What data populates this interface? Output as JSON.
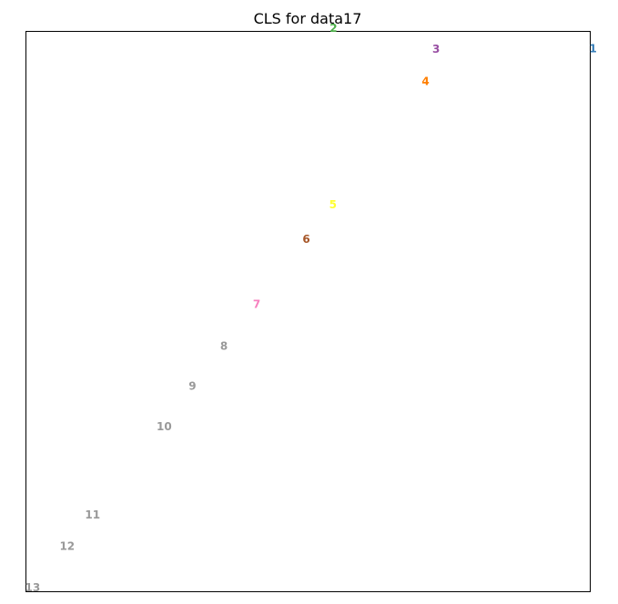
{
  "chart_data": {
    "type": "scatter",
    "title": "CLS for data17",
    "xlabel": "",
    "ylabel": "",
    "axes_visible": false,
    "grid": false,
    "legend": "none",
    "xlim": [
      0,
      100
    ],
    "ylim": [
      0,
      100
    ],
    "points": [
      {
        "label": "1",
        "x": 100.5,
        "y": 96.9,
        "color": "#377eb8"
      },
      {
        "label": "2",
        "x": 54.5,
        "y": 100.6,
        "color": "#4daf4a"
      },
      {
        "label": "3",
        "x": 72.7,
        "y": 96.8,
        "color": "#984ea3"
      },
      {
        "label": "4",
        "x": 70.8,
        "y": 91.1,
        "color": "#ff7f00"
      },
      {
        "label": "5",
        "x": 54.4,
        "y": 69.1,
        "color": "#ffff33"
      },
      {
        "label": "6",
        "x": 49.7,
        "y": 62.9,
        "color": "#a65628"
      },
      {
        "label": "7",
        "x": 40.9,
        "y": 51.3,
        "color": "#f781bf"
      },
      {
        "label": "8",
        "x": 35.1,
        "y": 43.8,
        "color": "#999999"
      },
      {
        "label": "9",
        "x": 29.5,
        "y": 36.7,
        "color": "#999999"
      },
      {
        "label": "10",
        "x": 24.5,
        "y": 29.5,
        "color": "#999999"
      },
      {
        "label": "11",
        "x": 11.8,
        "y": 13.7,
        "color": "#999999"
      },
      {
        "label": "12",
        "x": 7.3,
        "y": 8.1,
        "color": "#999999"
      },
      {
        "label": "13",
        "x": 1.2,
        "y": 0.7,
        "color": "#999999"
      }
    ]
  }
}
